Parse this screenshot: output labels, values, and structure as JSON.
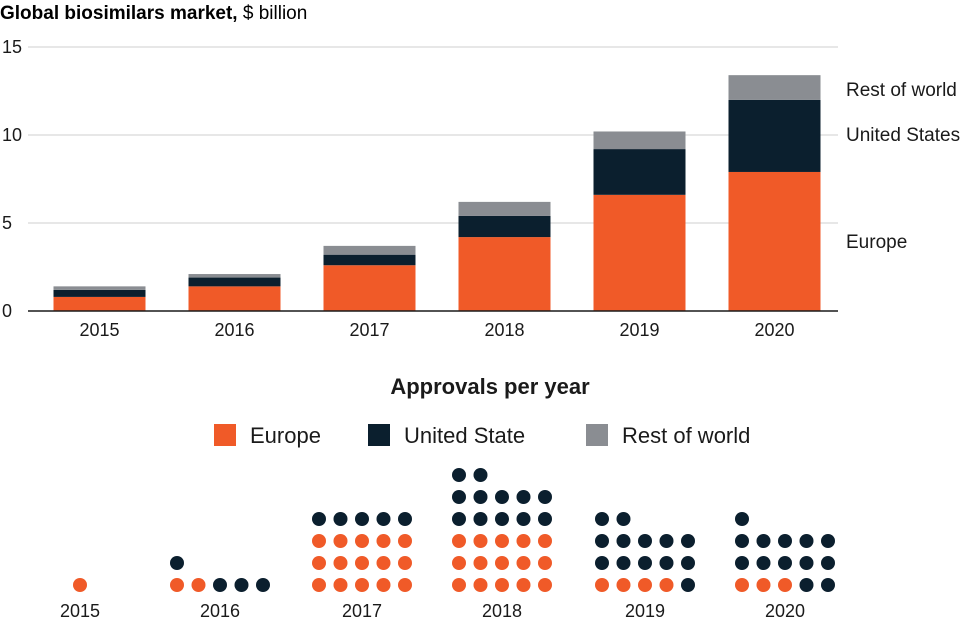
{
  "colors": {
    "europe": "#F05A28",
    "united_states": "#0B1F2E",
    "rest_of_world": "#8A8D92",
    "grid": "#CFCFCF",
    "axis": "#1a1a1a"
  },
  "chart_data": [
    {
      "type": "bar",
      "stacked": true,
      "title_bold": "Global biosimilars market,",
      "title_rest": " $ billion",
      "categories": [
        "2015",
        "2016",
        "2017",
        "2018",
        "2019",
        "2020"
      ],
      "ylim": [
        0,
        15
      ],
      "yticks": [
        "0",
        "5",
        "10",
        "15"
      ],
      "grid": true,
      "series": [
        {
          "key": "europe",
          "name": "Europe",
          "values": [
            0.8,
            1.4,
            2.6,
            4.2,
            6.6,
            7.9
          ]
        },
        {
          "key": "united_states",
          "name": "United States",
          "values": [
            0.4,
            0.5,
            0.6,
            1.2,
            2.6,
            4.1
          ]
        },
        {
          "key": "rest_of_world",
          "name": "Rest of world",
          "values": [
            0.2,
            0.2,
            0.5,
            0.8,
            1.0,
            1.4
          ]
        }
      ],
      "segment_labels": [
        "Rest of world",
        "United States",
        "Europe"
      ]
    },
    {
      "type": "dot-count",
      "title": "Approvals per year",
      "legend": [
        "Europe",
        "United State",
        "Rest of world"
      ],
      "categories": [
        "2015",
        "2016",
        "2017",
        "2018",
        "2019",
        "2020"
      ],
      "series": [
        {
          "key": "europe",
          "name": "Europe",
          "values": [
            1,
            2,
            15,
            15,
            4,
            3
          ]
        },
        {
          "key": "united_states",
          "name": "United State",
          "values": [
            0,
            4,
            5,
            12,
            13,
            13
          ]
        },
        {
          "key": "rest_of_world",
          "name": "Rest of world",
          "values": [
            0,
            0,
            0,
            0,
            0,
            0
          ]
        }
      ]
    }
  ]
}
